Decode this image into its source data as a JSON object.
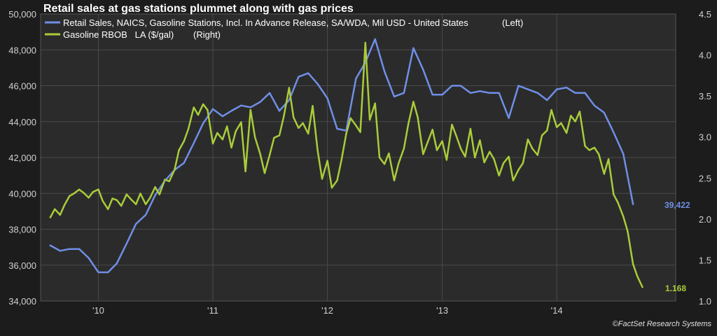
{
  "colors": {
    "background": "#1c1c1c",
    "plot_background": "#2b2b2b",
    "grid": "#4a4a4a",
    "retail_series": "#6f8fe6",
    "gasoline_series": "#a9cc3a"
  },
  "credit": "©FactSet Research Systems",
  "chart_data": {
    "type": "line",
    "title": "Retail sales at gas stations plummet along with gas prices",
    "grid": true,
    "legend_placement": "top-left",
    "x_range": [
      "2009-07-01",
      "2015-01-15"
    ],
    "x_ticks": [
      {
        "date": "2010-01-01",
        "label": "'10"
      },
      {
        "date": "2011-01-01",
        "label": "'11"
      },
      {
        "date": "2012-01-01",
        "label": "'12"
      },
      {
        "date": "2013-01-01",
        "label": "'13"
      },
      {
        "date": "2014-01-01",
        "label": "'14"
      }
    ],
    "y_left": {
      "range": [
        34000,
        50000
      ],
      "ticks": [
        "34,000",
        "36,000",
        "38,000",
        "40,000",
        "42,000",
        "44,000",
        "46,000",
        "48,000",
        "50,000"
      ]
    },
    "y_right": {
      "range": [
        1.0,
        4.5
      ],
      "ticks": [
        "1.0",
        "1.5",
        "2.0",
        "2.5",
        "3.0",
        "3.5",
        "4.0",
        "4.5"
      ]
    },
    "series": [
      {
        "name": "Retail Sales, NAICS, Gasoline Stations, Incl. In Advance Release, SA/WDA, Mil USD - United States",
        "axis_label": "(Left)",
        "axis": "left",
        "end_label": "39,422",
        "points": [
          [
            "2009-08-01",
            37100
          ],
          [
            "2009-09-01",
            36800
          ],
          [
            "2009-10-01",
            36900
          ],
          [
            "2009-11-01",
            36900
          ],
          [
            "2009-12-01",
            36400
          ],
          [
            "2010-01-01",
            35600
          ],
          [
            "2010-02-01",
            35600
          ],
          [
            "2010-03-01",
            36100
          ],
          [
            "2010-04-01",
            37200
          ],
          [
            "2010-05-01",
            38300
          ],
          [
            "2010-06-01",
            38800
          ],
          [
            "2010-07-01",
            39900
          ],
          [
            "2010-08-01",
            40700
          ],
          [
            "2010-09-01",
            41300
          ],
          [
            "2010-10-01",
            41700
          ],
          [
            "2010-11-01",
            42800
          ],
          [
            "2010-12-01",
            43900
          ],
          [
            "2011-01-01",
            44700
          ],
          [
            "2011-02-01",
            44300
          ],
          [
            "2011-03-01",
            44600
          ],
          [
            "2011-04-01",
            44900
          ],
          [
            "2011-05-01",
            44800
          ],
          [
            "2011-06-01",
            45100
          ],
          [
            "2011-07-01",
            45600
          ],
          [
            "2011-08-01",
            44600
          ],
          [
            "2011-09-01",
            45200
          ],
          [
            "2011-10-01",
            46500
          ],
          [
            "2011-11-01",
            46700
          ],
          [
            "2011-12-01",
            46100
          ],
          [
            "2012-01-01",
            45300
          ],
          [
            "2012-02-01",
            43600
          ],
          [
            "2012-03-01",
            43500
          ],
          [
            "2012-04-01",
            46400
          ],
          [
            "2012-05-01",
            47300
          ],
          [
            "2012-06-01",
            48600
          ],
          [
            "2012-07-01",
            46800
          ],
          [
            "2012-08-01",
            45400
          ],
          [
            "2012-09-01",
            45600
          ],
          [
            "2012-10-01",
            48100
          ],
          [
            "2012-11-01",
            46900
          ],
          [
            "2012-12-01",
            45500
          ],
          [
            "2013-01-01",
            45500
          ],
          [
            "2013-02-01",
            46000
          ],
          [
            "2013-03-01",
            46000
          ],
          [
            "2013-04-01",
            45600
          ],
          [
            "2013-05-01",
            45700
          ],
          [
            "2013-06-01",
            45600
          ],
          [
            "2013-07-01",
            45600
          ],
          [
            "2013-08-01",
            44200
          ],
          [
            "2013-09-01",
            46000
          ],
          [
            "2013-10-01",
            45800
          ],
          [
            "2013-11-01",
            45600
          ],
          [
            "2013-12-01",
            45200
          ],
          [
            "2014-01-01",
            45800
          ],
          [
            "2014-02-01",
            45900
          ],
          [
            "2014-03-01",
            45600
          ],
          [
            "2014-04-01",
            45600
          ],
          [
            "2014-05-01",
            44900
          ],
          [
            "2014-06-01",
            44500
          ],
          [
            "2014-07-01",
            43400
          ],
          [
            "2014-08-01",
            42200
          ],
          [
            "2014-09-01",
            39400
          ]
        ]
      },
      {
        "name": "Gasoline RBOB   LA ($/gal)",
        "axis_label": "(Right)",
        "axis": "right",
        "end_label": "1.168",
        "points": [
          [
            "2009-08-01",
            2.02
          ],
          [
            "2009-08-15",
            2.12
          ],
          [
            "2009-09-01",
            2.05
          ],
          [
            "2009-09-15",
            2.17
          ],
          [
            "2009-10-01",
            2.28
          ],
          [
            "2009-10-15",
            2.31
          ],
          [
            "2009-11-01",
            2.36
          ],
          [
            "2009-11-15",
            2.32
          ],
          [
            "2009-12-01",
            2.26
          ],
          [
            "2009-12-15",
            2.33
          ],
          [
            "2010-01-01",
            2.36
          ],
          [
            "2010-01-15",
            2.22
          ],
          [
            "2010-02-01",
            2.12
          ],
          [
            "2010-02-15",
            2.25
          ],
          [
            "2010-03-01",
            2.23
          ],
          [
            "2010-03-15",
            2.16
          ],
          [
            "2010-04-01",
            2.3
          ],
          [
            "2010-04-15",
            2.24
          ],
          [
            "2010-05-01",
            2.18
          ],
          [
            "2010-05-15",
            2.31
          ],
          [
            "2010-06-01",
            2.18
          ],
          [
            "2010-06-15",
            2.26
          ],
          [
            "2010-07-01",
            2.39
          ],
          [
            "2010-07-15",
            2.3
          ],
          [
            "2010-08-01",
            2.48
          ],
          [
            "2010-08-15",
            2.46
          ],
          [
            "2010-09-01",
            2.6
          ],
          [
            "2010-09-15",
            2.84
          ],
          [
            "2010-10-01",
            2.95
          ],
          [
            "2010-10-15",
            3.1
          ],
          [
            "2010-11-01",
            3.36
          ],
          [
            "2010-11-15",
            3.27
          ],
          [
            "2010-12-01",
            3.4
          ],
          [
            "2010-12-15",
            3.33
          ],
          [
            "2011-01-01",
            2.92
          ],
          [
            "2011-01-15",
            3.05
          ],
          [
            "2011-02-01",
            2.97
          ],
          [
            "2011-02-15",
            3.13
          ],
          [
            "2011-03-01",
            2.87
          ],
          [
            "2011-03-15",
            3.07
          ],
          [
            "2011-04-01",
            3.18
          ],
          [
            "2011-04-15",
            2.58
          ],
          [
            "2011-05-01",
            3.33
          ],
          [
            "2011-05-15",
            3.0
          ],
          [
            "2011-06-01",
            2.79
          ],
          [
            "2011-06-15",
            2.56
          ],
          [
            "2011-07-01",
            2.78
          ],
          [
            "2011-07-15",
            2.99
          ],
          [
            "2011-08-01",
            3.02
          ],
          [
            "2011-08-15",
            3.25
          ],
          [
            "2011-09-01",
            3.6
          ],
          [
            "2011-09-15",
            3.24
          ],
          [
            "2011-10-01",
            3.11
          ],
          [
            "2011-10-15",
            3.17
          ],
          [
            "2011-11-01",
            3.04
          ],
          [
            "2011-11-15",
            3.38
          ],
          [
            "2011-12-01",
            2.83
          ],
          [
            "2011-12-15",
            2.49
          ],
          [
            "2012-01-01",
            2.71
          ],
          [
            "2012-01-15",
            2.38
          ],
          [
            "2012-02-01",
            2.47
          ],
          [
            "2012-02-15",
            2.72
          ],
          [
            "2012-03-01",
            3.04
          ],
          [
            "2012-03-15",
            3.23
          ],
          [
            "2012-04-01",
            3.14
          ],
          [
            "2012-04-15",
            3.06
          ],
          [
            "2012-05-01",
            4.15
          ],
          [
            "2012-05-15",
            3.21
          ],
          [
            "2012-06-01",
            3.41
          ],
          [
            "2012-06-15",
            2.75
          ],
          [
            "2012-07-01",
            2.67
          ],
          [
            "2012-07-15",
            2.8
          ],
          [
            "2012-08-01",
            2.47
          ],
          [
            "2012-08-15",
            2.68
          ],
          [
            "2012-09-01",
            2.86
          ],
          [
            "2012-09-15",
            3.16
          ],
          [
            "2012-10-01",
            3.43
          ],
          [
            "2012-10-15",
            3.24
          ],
          [
            "2012-11-01",
            2.79
          ],
          [
            "2012-11-15",
            2.93
          ],
          [
            "2012-12-01",
            3.09
          ],
          [
            "2012-12-15",
            2.84
          ],
          [
            "2013-01-01",
            2.95
          ],
          [
            "2013-01-15",
            2.72
          ],
          [
            "2013-02-01",
            3.15
          ],
          [
            "2013-02-15",
            3.01
          ],
          [
            "2013-03-01",
            2.86
          ],
          [
            "2013-03-15",
            2.76
          ],
          [
            "2013-04-01",
            3.1
          ],
          [
            "2013-04-15",
            2.75
          ],
          [
            "2013-05-01",
            2.96
          ],
          [
            "2013-05-15",
            2.69
          ],
          [
            "2013-06-01",
            2.82
          ],
          [
            "2013-06-15",
            2.73
          ],
          [
            "2013-07-01",
            2.53
          ],
          [
            "2013-07-15",
            2.68
          ],
          [
            "2013-08-01",
            2.76
          ],
          [
            "2013-08-15",
            2.47
          ],
          [
            "2013-09-01",
            2.6
          ],
          [
            "2013-09-15",
            2.68
          ],
          [
            "2013-10-01",
            2.97
          ],
          [
            "2013-10-15",
            2.86
          ],
          [
            "2013-11-01",
            2.78
          ],
          [
            "2013-11-15",
            3.02
          ],
          [
            "2013-12-01",
            3.08
          ],
          [
            "2013-12-15",
            3.33
          ],
          [
            "2014-01-01",
            3.12
          ],
          [
            "2014-01-15",
            3.17
          ],
          [
            "2014-02-01",
            3.05
          ],
          [
            "2014-02-15",
            3.26
          ],
          [
            "2014-03-01",
            3.19
          ],
          [
            "2014-03-15",
            3.31
          ],
          [
            "2014-04-01",
            2.89
          ],
          [
            "2014-04-15",
            2.84
          ],
          [
            "2014-05-01",
            2.87
          ],
          [
            "2014-05-15",
            2.79
          ],
          [
            "2014-06-01",
            2.55
          ],
          [
            "2014-06-15",
            2.73
          ],
          [
            "2014-07-01",
            2.3
          ],
          [
            "2014-07-15",
            2.2
          ],
          [
            "2014-08-01",
            2.03
          ],
          [
            "2014-08-15",
            1.85
          ],
          [
            "2014-09-01",
            1.45
          ],
          [
            "2014-09-15",
            1.3
          ],
          [
            "2014-10-01",
            1.17
          ]
        ]
      }
    ]
  }
}
